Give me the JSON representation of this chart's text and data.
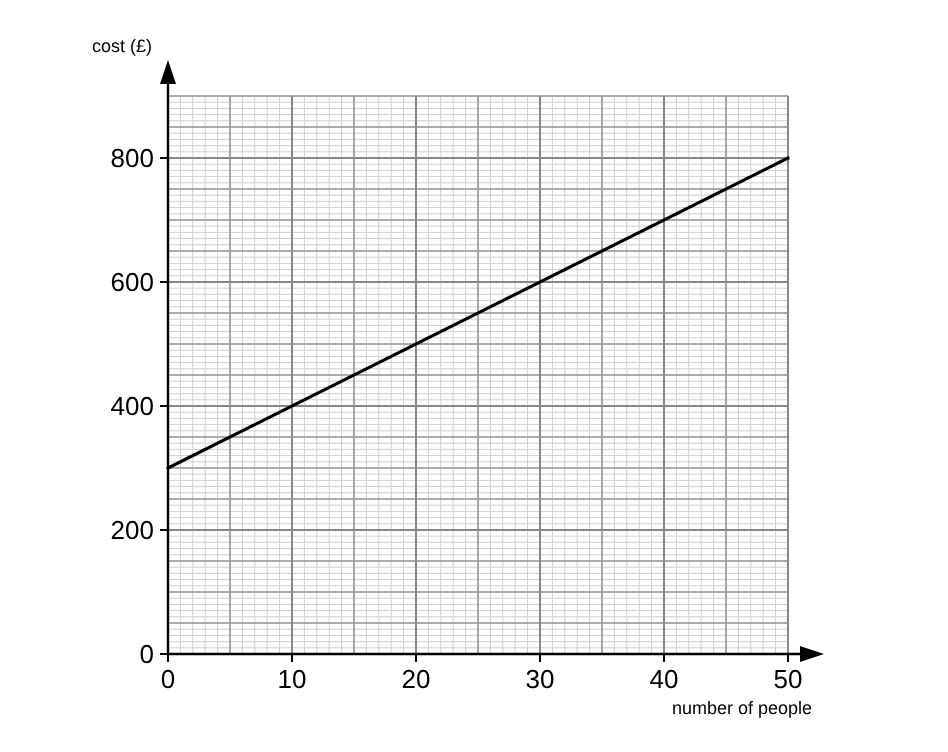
{
  "chart_data": {
    "type": "line",
    "xlabel": "number of people",
    "ylabel": "cost (£)",
    "x": [
      0,
      50
    ],
    "series": [
      {
        "color": "#000000",
        "values": [
          300,
          800
        ]
      }
    ],
    "xlim": [
      0,
      50
    ],
    "ylim": [
      0,
      900
    ],
    "xticks": [
      0,
      10,
      20,
      30,
      40,
      50
    ],
    "yticks": [
      0,
      200,
      400,
      600,
      800
    ],
    "grid": true,
    "marker": "none",
    "line_style": "solid"
  }
}
